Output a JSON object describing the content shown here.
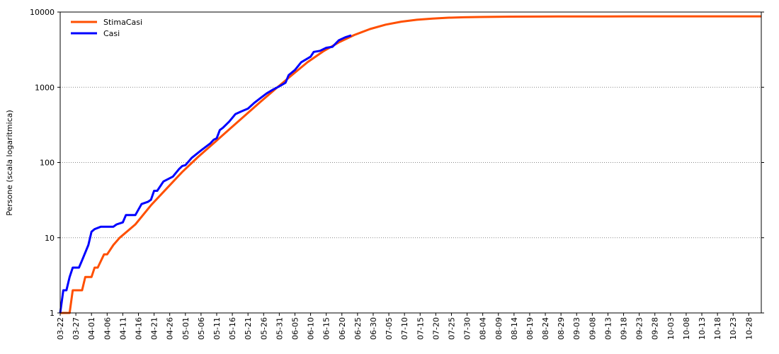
{
  "chart_data": {
    "type": "line",
    "title": "",
    "xlabel": "",
    "ylabel": "Persone (scala logaritmica)",
    "yscale": "log",
    "ylim": [
      1,
      10000
    ],
    "yticks": [
      1,
      10,
      100,
      1000,
      10000
    ],
    "ytick_labels": [
      "1",
      "10",
      "100",
      "1000",
      "10000"
    ],
    "grid": "horizontal dotted",
    "legend_position": "top-left",
    "x_start": "03-22",
    "x_end": "11-01",
    "xtick_labels": [
      "03-22",
      "03-27",
      "04-01",
      "04-06",
      "04-11",
      "04-16",
      "04-21",
      "04-26",
      "05-01",
      "05-06",
      "05-11",
      "05-16",
      "05-21",
      "05-26",
      "05-31",
      "06-05",
      "06-10",
      "06-15",
      "06-20",
      "06-25",
      "06-30",
      "07-05",
      "07-10",
      "07-15",
      "07-20",
      "07-25",
      "07-30",
      "08-04",
      "08-09",
      "08-14",
      "08-19",
      "08-24",
      "08-29",
      "09-03",
      "09-08",
      "09-13",
      "09-18",
      "09-23",
      "09-28",
      "10-03",
      "10-08",
      "10-13",
      "10-18",
      "10-23",
      "10-28"
    ],
    "series": [
      {
        "name": "StimaCasi",
        "color": "#ff4f00",
        "points": [
          [
            "03-22",
            1
          ],
          [
            "03-25",
            1
          ],
          [
            "03-26",
            2
          ],
          [
            "03-29",
            2
          ],
          [
            "03-30",
            3
          ],
          [
            "04-01",
            3
          ],
          [
            "04-02",
            4
          ],
          [
            "04-03",
            4
          ],
          [
            "04-05",
            6
          ],
          [
            "04-06",
            6
          ],
          [
            "04-08",
            8
          ],
          [
            "04-10",
            10
          ],
          [
            "04-15",
            15
          ],
          [
            "04-20",
            27
          ],
          [
            "04-25",
            45
          ],
          [
            "04-30",
            75
          ],
          [
            "05-05",
            118
          ],
          [
            "05-10",
            180
          ],
          [
            "05-15",
            275
          ],
          [
            "05-20",
            420
          ],
          [
            "05-25",
            640
          ],
          [
            "05-30",
            970
          ],
          [
            "06-04",
            1450
          ],
          [
            "06-09",
            2150
          ],
          [
            "06-14",
            3000
          ],
          [
            "06-19",
            3950
          ],
          [
            "06-24",
            4950
          ],
          [
            "06-29",
            5950
          ],
          [
            "07-04",
            6800
          ],
          [
            "07-09",
            7450
          ],
          [
            "07-14",
            7900
          ],
          [
            "07-19",
            8200
          ],
          [
            "07-24",
            8400
          ],
          [
            "07-29",
            8520
          ],
          [
            "08-03",
            8600
          ],
          [
            "08-13",
            8680
          ],
          [
            "08-28",
            8720
          ],
          [
            "09-12",
            8740
          ],
          [
            "10-12",
            8760
          ],
          [
            "11-01",
            8770
          ]
        ]
      },
      {
        "name": "Casi",
        "color": "#0000ff",
        "points": [
          [
            "03-22",
            1
          ],
          [
            "03-23",
            2
          ],
          [
            "03-24",
            2
          ],
          [
            "03-25",
            3
          ],
          [
            "03-26",
            4
          ],
          [
            "03-28",
            4
          ],
          [
            "03-29",
            5
          ],
          [
            "03-31",
            8
          ],
          [
            "04-01",
            12
          ],
          [
            "04-02",
            13
          ],
          [
            "04-04",
            14
          ],
          [
            "04-08",
            14
          ],
          [
            "04-09",
            15
          ],
          [
            "04-11",
            16
          ],
          [
            "04-12",
            20
          ],
          [
            "04-15",
            20
          ],
          [
            "04-17",
            28
          ],
          [
            "04-19",
            30
          ],
          [
            "04-20",
            32
          ],
          [
            "04-21",
            42
          ],
          [
            "04-22",
            42
          ],
          [
            "04-24",
            56
          ],
          [
            "04-27",
            65
          ],
          [
            "04-29",
            82
          ],
          [
            "04-30",
            90
          ],
          [
            "05-01",
            92
          ],
          [
            "05-03",
            115
          ],
          [
            "05-06",
            145
          ],
          [
            "05-09",
            180
          ],
          [
            "05-10",
            200
          ],
          [
            "05-11",
            210
          ],
          [
            "05-12",
            270
          ],
          [
            "05-13",
            290
          ],
          [
            "05-15",
            350
          ],
          [
            "05-17",
            440
          ],
          [
            "05-19",
            480
          ],
          [
            "05-21",
            520
          ],
          [
            "05-23",
            620
          ],
          [
            "05-25",
            720
          ],
          [
            "05-27",
            830
          ],
          [
            "05-29",
            930
          ],
          [
            "05-31",
            1030
          ],
          [
            "06-02",
            1150
          ],
          [
            "06-03",
            1450
          ],
          [
            "06-05",
            1700
          ],
          [
            "06-07",
            2150
          ],
          [
            "06-10",
            2550
          ],
          [
            "06-11",
            2950
          ],
          [
            "06-13",
            3050
          ],
          [
            "06-15",
            3350
          ],
          [
            "06-17",
            3450
          ],
          [
            "06-18",
            3800
          ],
          [
            "06-19",
            4200
          ],
          [
            "06-21",
            4600
          ],
          [
            "06-23",
            4900
          ]
        ]
      }
    ]
  }
}
